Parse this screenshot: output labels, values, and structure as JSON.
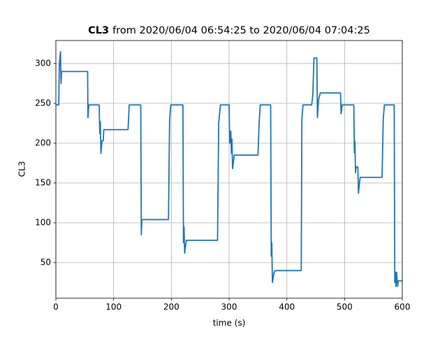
{
  "chart_data": {
    "type": "line",
    "title_bold": "CL3",
    "title": "from 2020/06/04 06:54:25 to 2020/06/04 07:04:25",
    "x_label": "time (s)",
    "y_label": "CL3",
    "xlim": [
      0,
      600
    ],
    "ylim": [
      5.3,
      328.9
    ],
    "xticks": [
      0,
      100,
      200,
      300,
      400,
      500,
      600
    ],
    "yticks": [
      50,
      100,
      150,
      200,
      250,
      300
    ],
    "grid": true,
    "series": [
      {
        "color": "#1f77b4",
        "x": [
          0,
          5,
          6,
          8,
          9,
          10,
          55,
          55.5,
          57,
          75,
          76,
          77,
          78,
          80,
          82,
          83,
          125,
          127,
          147,
          148,
          149,
          195,
          197,
          199,
          220,
          221,
          222,
          223,
          226,
          280,
          282,
          285,
          300,
          301,
          303,
          304,
          305,
          306,
          309,
          350,
          352,
          354,
          372,
          373,
          374,
          375,
          378,
          380,
          425,
          426,
          428,
          443,
          445,
          447,
          452,
          453,
          455,
          458,
          493,
          494,
          496,
          516,
          517,
          518,
          519,
          520,
          523,
          524,
          527,
          565,
          567,
          569,
          586,
          587,
          588,
          589,
          590,
          592,
          593,
          600
        ],
        "values": [
          248,
          248,
          300,
          315,
          275,
          290,
          290,
          232,
          248,
          248,
          212,
          227,
          187,
          203,
          203,
          217,
          217,
          248,
          248,
          85,
          104,
          104,
          230,
          248,
          248,
          75,
          95,
          62,
          78,
          78,
          225,
          248,
          248,
          200,
          215,
          187,
          205,
          168,
          185,
          185,
          225,
          248,
          248,
          58,
          75,
          25,
          38,
          40,
          40,
          230,
          248,
          248,
          260,
          307,
          307,
          232,
          255,
          263,
          263,
          237,
          248,
          248,
          188,
          202,
          163,
          170,
          170,
          137,
          157,
          157,
          230,
          248,
          248,
          25,
          38,
          20,
          38,
          20,
          27,
          27
        ]
      }
    ]
  }
}
